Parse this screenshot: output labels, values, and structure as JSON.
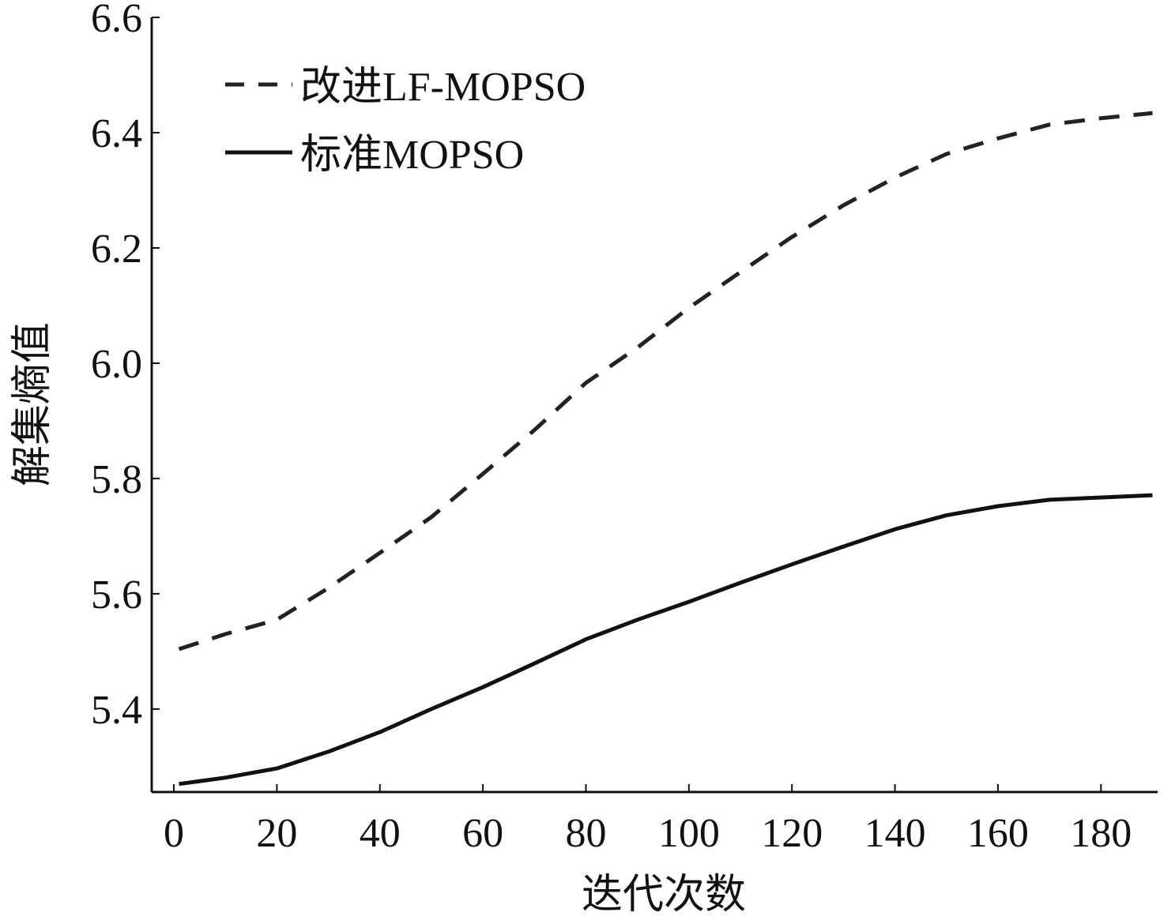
{
  "chart_data": {
    "type": "line",
    "title": "",
    "xlabel": "迭代次数",
    "ylabel": "解集熵值",
    "xlim": [
      -4.3,
      191
    ],
    "ylim": [
      5.256,
      6.6
    ],
    "x_ticks": [
      0,
      20,
      40,
      60,
      80,
      100,
      120,
      140,
      160,
      180
    ],
    "x_tick_labels": [
      "0",
      "20",
      "40",
      "60",
      "80",
      "100",
      "120",
      "140",
      "160",
      "180"
    ],
    "y_ticks": [
      5.4,
      5.6,
      5.8,
      6.0,
      6.2,
      6.4,
      6.6
    ],
    "y_tick_labels": [
      "5.4",
      "5.6",
      "5.8",
      "6.0",
      "6.2",
      "6.4",
      "6.6"
    ],
    "grid": false,
    "legend_position": "top-left",
    "x": [
      1,
      10,
      20,
      30,
      40,
      50,
      60,
      70,
      80,
      90,
      100,
      110,
      120,
      130,
      140,
      150,
      160,
      170,
      180,
      190
    ],
    "series": [
      {
        "name": "改进LF-MOPSO",
        "style": "dashed",
        "color": "#222222",
        "values": [
          5.504,
          5.53,
          5.555,
          5.61,
          5.671,
          5.733,
          5.808,
          5.884,
          5.966,
          6.027,
          6.096,
          6.158,
          6.219,
          6.274,
          6.322,
          6.363,
          6.39,
          6.414,
          6.425,
          6.434
        ]
      },
      {
        "name": "标准MOPSO",
        "style": "solid",
        "color": "#111111",
        "values": [
          5.27,
          5.281,
          5.297,
          5.326,
          5.36,
          5.4,
          5.438,
          5.479,
          5.521,
          5.555,
          5.586,
          5.619,
          5.651,
          5.682,
          5.712,
          5.736,
          5.752,
          5.763,
          5.767,
          5.771
        ]
      }
    ]
  }
}
